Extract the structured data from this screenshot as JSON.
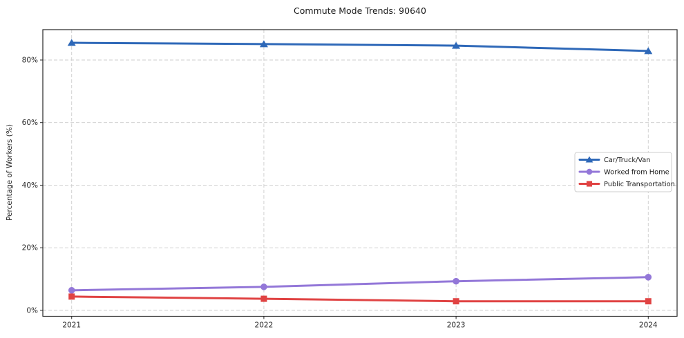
{
  "chart_data": {
    "type": "line",
    "title": "Commute Mode Trends: 90640",
    "xlabel": "",
    "ylabel": "Percentage of Workers (%)",
    "x": [
      2021,
      2022,
      2023,
      2024
    ],
    "xtick_labels": [
      "2021",
      "2022",
      "2023",
      "2024"
    ],
    "xlim": [
      2020.85,
      2024.15
    ],
    "ylim": [
      -1.9,
      89.7
    ],
    "yticks": [
      0,
      20,
      40,
      60,
      80
    ],
    "ytick_labels": [
      "0%",
      "20%",
      "40%",
      "60%",
      "80%"
    ],
    "grid": true,
    "grid_color": "#cccccc",
    "grid_style": "dashed",
    "spine_color": "#262626",
    "background_color": "#ffffff",
    "legend": {
      "position": "center-right",
      "border_color": "#cccccc",
      "background_color": "#ffffff"
    },
    "series": [
      {
        "name": "Car/Truck/Van",
        "values": [
          85.5,
          85.1,
          84.6,
          82.9
        ],
        "color": "#2e68b8",
        "marker": "triangle-up"
      },
      {
        "name": "Worked from Home",
        "values": [
          6.4,
          7.5,
          9.3,
          10.6
        ],
        "color": "#9377d8",
        "marker": "circle"
      },
      {
        "name": "Public Transportation",
        "values": [
          4.4,
          3.7,
          2.9,
          2.9
        ],
        "color": "#e04343",
        "marker": "square"
      }
    ]
  }
}
